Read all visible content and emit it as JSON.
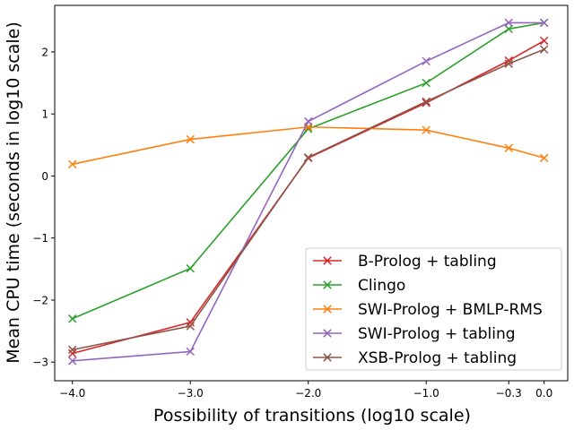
{
  "chart_data": {
    "type": "line",
    "title": "",
    "xlabel": "Possibility of transitions (log10 scale)",
    "ylabel": "Mean CPU time (seconds in log10 scale)",
    "x": [
      -4.0,
      -3.0,
      -2.0,
      -1.0,
      -0.3,
      0.0
    ],
    "x_tick_labels": [
      "−4.0",
      "−3.0",
      "−2.0",
      "−1.0",
      "−0.3",
      "0.0"
    ],
    "xlim": [
      -4.15,
      0.2
    ],
    "ylim": [
      -3.3,
      2.75
    ],
    "y_ticks": [
      -3,
      -2,
      -1,
      0,
      1,
      2
    ],
    "y_tick_labels": [
      "−3",
      "−2",
      "−1",
      "0",
      "1",
      "2"
    ],
    "marker": "x",
    "legend_position": "lower-right",
    "grid": false,
    "series": [
      {
        "name": "B-Prolog + tabling",
        "color": "#d62728",
        "values": [
          -2.86,
          -2.36,
          0.29,
          1.18,
          1.86,
          2.18
        ]
      },
      {
        "name": "Clingo",
        "color": "#2ca02c",
        "values": [
          -2.3,
          -1.49,
          0.76,
          1.5,
          2.37,
          2.47
        ]
      },
      {
        "name": "SWI-Prolog + BMLP-RMS",
        "color": "#ff7f0e",
        "values": [
          0.19,
          0.59,
          0.79,
          0.74,
          0.45,
          0.29
        ]
      },
      {
        "name": "SWI-Prolog + tabling",
        "color": "#9467bd",
        "values": [
          -2.98,
          -2.83,
          0.88,
          1.85,
          2.47,
          2.47
        ]
      },
      {
        "name": "XSB-Prolog + tabling",
        "color": "#8c564b",
        "values": [
          -2.8,
          -2.42,
          0.3,
          1.2,
          1.81,
          2.04
        ]
      }
    ]
  }
}
